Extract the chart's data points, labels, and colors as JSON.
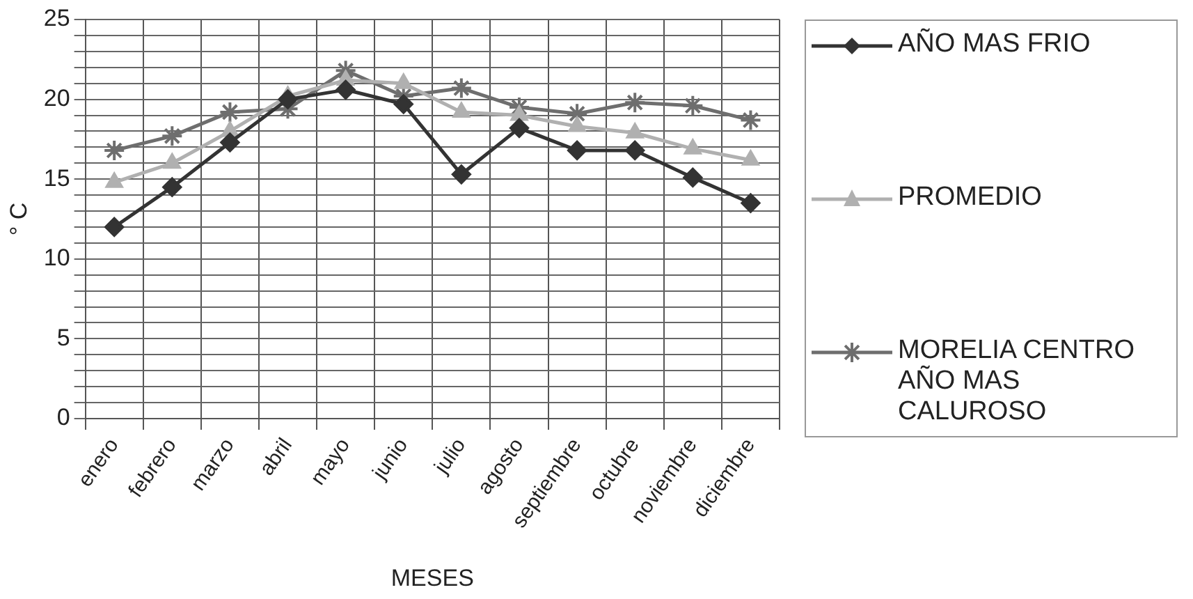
{
  "chart_data": {
    "type": "line",
    "xlabel": "MESES",
    "ylabel": "° C",
    "categories": [
      "enero",
      "febrero",
      "marzo",
      "abril",
      "mayo",
      "junio",
      "julio",
      "agosto",
      "septiembre",
      "octubre",
      "noviembre",
      "diciembre"
    ],
    "series": [
      {
        "name": "AÑO MAS FRIO",
        "color": "#333333",
        "marker": "diamond",
        "values": [
          12.0,
          14.5,
          17.3,
          20.0,
          20.6,
          19.7,
          15.3,
          18.2,
          16.8,
          16.8,
          15.1,
          13.5
        ]
      },
      {
        "name": "PROMEDIO",
        "color": "#b0b0b0",
        "marker": "triangle",
        "values": [
          14.8,
          16.0,
          18.0,
          20.2,
          21.2,
          21.0,
          19.2,
          19.0,
          18.3,
          17.9,
          16.9,
          16.2
        ]
      },
      {
        "name": "MORELIA CENTRO AÑO MAS CALUROSO",
        "color": "#6e6e6e",
        "marker": "cross",
        "values": [
          16.8,
          17.7,
          19.2,
          19.4,
          21.8,
          20.2,
          20.7,
          19.5,
          19.1,
          19.8,
          19.6,
          18.7
        ]
      }
    ],
    "ylim": [
      0,
      25
    ],
    "yticks": [
      0,
      {
        "value": 1,
        "label": null
      },
      {
        "value": 2,
        "label": null
      },
      {
        "value": 3,
        "label": null
      },
      {
        "value": 4,
        "label": null
      },
      5,
      {
        "value": 6,
        "label": null
      },
      {
        "value": 7,
        "label": null
      },
      {
        "value": 8,
        "label": null
      },
      {
        "value": 9,
        "label": null
      },
      10,
      {
        "value": 11,
        "label": null
      },
      {
        "value": 12,
        "label": null
      },
      {
        "value": 13,
        "label": null
      },
      {
        "value": 14,
        "label": null
      },
      15,
      {
        "value": 16,
        "label": null
      },
      {
        "value": 17,
        "label": null
      },
      {
        "value": 18,
        "label": null
      },
      {
        "value": 19,
        "label": null
      },
      20,
      {
        "value": 21,
        "label": null
      },
      {
        "value": 22,
        "label": null
      },
      {
        "value": 23,
        "label": null
      },
      {
        "value": 24,
        "label": null
      },
      25
    ],
    "grid": true,
    "legend": "right",
    "line_style": "solid"
  }
}
